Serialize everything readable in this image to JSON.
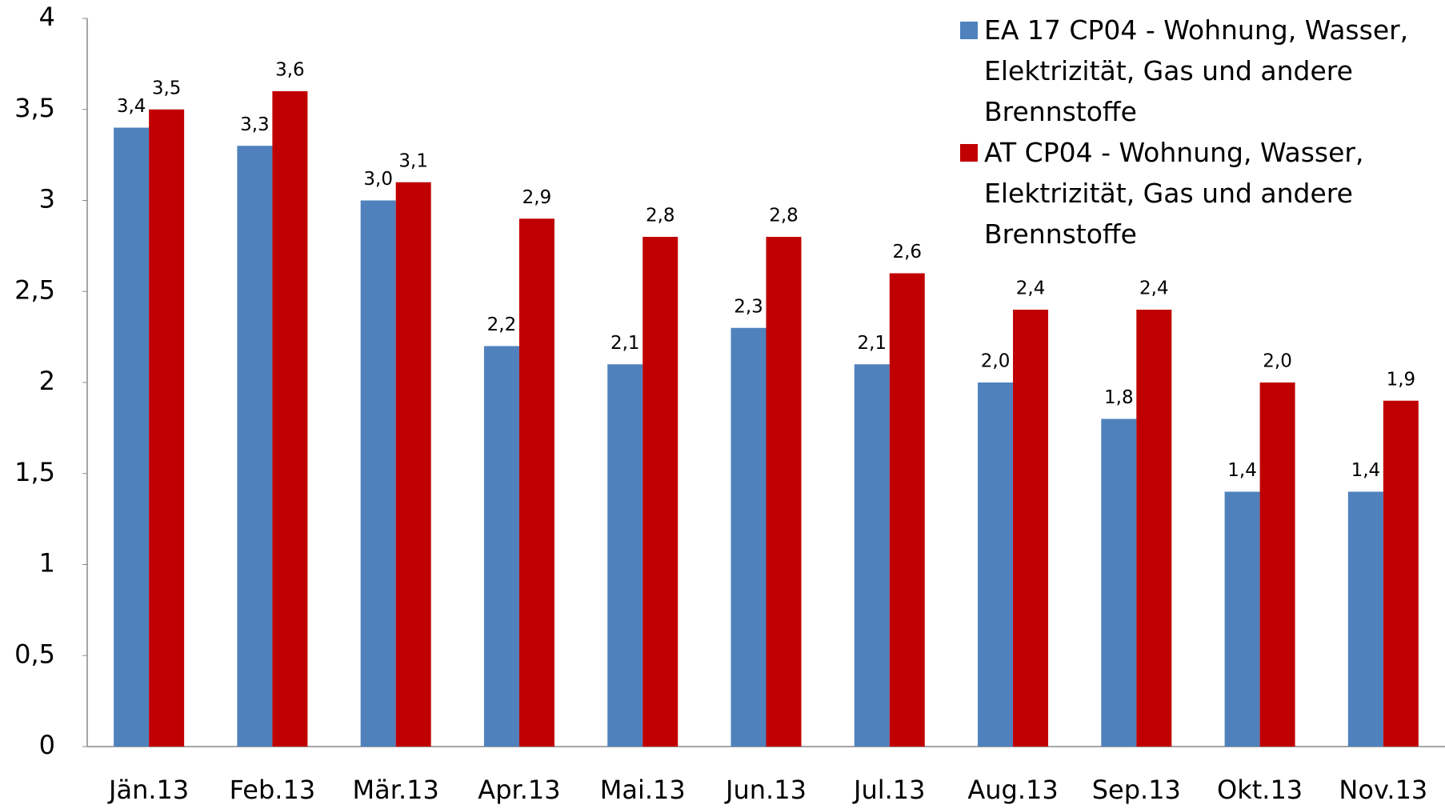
{
  "chart_data": {
    "type": "bar",
    "categories": [
      "Jän.13",
      "Feb.13",
      "Mär.13",
      "Apr.13",
      "Mai.13",
      "Jun.13",
      "Jul.13",
      "Aug.13",
      "Sep.13",
      "Okt.13",
      "Nov.13"
    ],
    "series": [
      {
        "name": "EA 17 CP04 - Wohnung, Wasser, Elektrizität, Gas und andere Brennstoffe",
        "color": "#4f81bd",
        "values": [
          3.4,
          3.3,
          3.0,
          2.2,
          2.1,
          2.3,
          2.1,
          2.0,
          1.8,
          1.4,
          1.4
        ],
        "value_labels": [
          "3,4",
          "3,3",
          "3,0",
          "2,2",
          "2,1",
          "2,3",
          "2,1",
          "2,0",
          "1,8",
          "1,4",
          "1,4"
        ]
      },
      {
        "name": "AT CP04 - Wohnung, Wasser, Elektrizität, Gas und andere Brennstoffe",
        "color": "#c00000",
        "values": [
          3.5,
          3.6,
          3.1,
          2.9,
          2.8,
          2.8,
          2.6,
          2.4,
          2.4,
          2.0,
          1.9
        ],
        "value_labels": [
          "3,5",
          "3,6",
          "3,1",
          "2,9",
          "2,8",
          "2,8",
          "2,6",
          "2,4",
          "2,4",
          "2,0",
          "1,9"
        ]
      }
    ],
    "ylim": [
      0,
      4
    ],
    "yticks": [
      0,
      {
        "value": 0.5,
        "label": "0,5"
      },
      1,
      {
        "value": 1.5,
        "label": "1,5"
      },
      2,
      {
        "value": 2.5,
        "label": "2,5"
      },
      3,
      {
        "value": 3.5,
        "label": "3,5"
      },
      4
    ],
    "grid": false,
    "legend": "top-right"
  }
}
